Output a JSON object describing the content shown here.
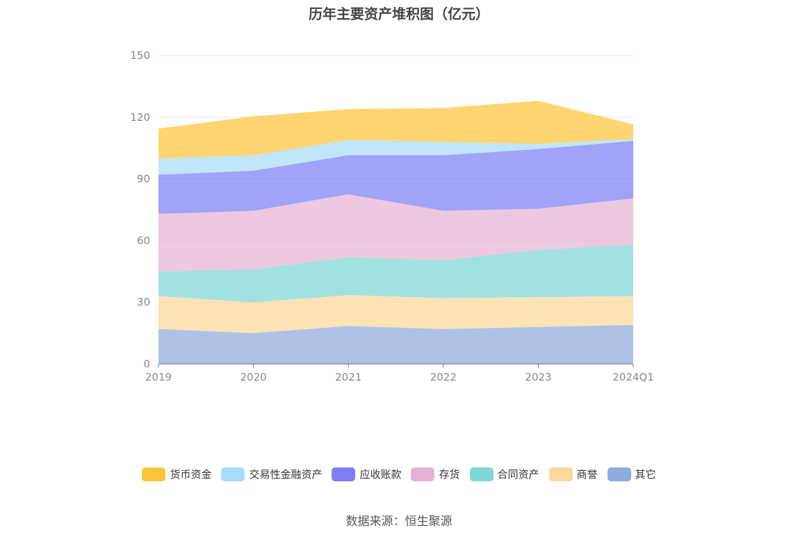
{
  "chart_data": {
    "type": "area",
    "stacked": true,
    "title": "历年主要资产堆积图（亿元）",
    "categories": [
      "2019",
      "2020",
      "2021",
      "2022",
      "2023",
      "2024Q1"
    ],
    "ylim": [
      0,
      150
    ],
    "yticks": [
      0,
      30,
      60,
      90,
      120,
      150
    ],
    "grid": true,
    "legend_position": "bottom",
    "series": [
      {
        "name": "其它",
        "color": "#8faadc",
        "values": [
          17,
          15,
          18.5,
          17,
          18,
          19
        ]
      },
      {
        "name": "商誉",
        "color": "#fdd89a",
        "values": [
          16,
          15,
          15,
          15,
          14.5,
          14
        ]
      },
      {
        "name": "合同资产",
        "color": "#7fd6d6",
        "values": [
          12,
          16,
          18.5,
          18.5,
          23,
          25
        ]
      },
      {
        "name": "存货",
        "color": "#e6b3d6",
        "values": [
          28,
          28.5,
          30.5,
          24,
          20,
          22.5
        ]
      },
      {
        "name": "应收账款",
        "color": "#7b7ff2",
        "values": [
          19,
          19.5,
          19,
          27,
          29,
          28
        ]
      },
      {
        "name": "交易性金融资产",
        "color": "#a8dcfa",
        "values": [
          8,
          7.5,
          7.5,
          6.5,
          2.5,
          1
        ]
      },
      {
        "name": "货币资金",
        "color": "#fdc53a",
        "values": [
          14.5,
          19,
          15,
          16.5,
          21,
          7
        ]
      }
    ],
    "legend_order": [
      "货币资金",
      "交易性金融资产",
      "应收账款",
      "存货",
      "合同资产",
      "商誉",
      "其它"
    ]
  },
  "source": "数据来源：恒生聚源"
}
